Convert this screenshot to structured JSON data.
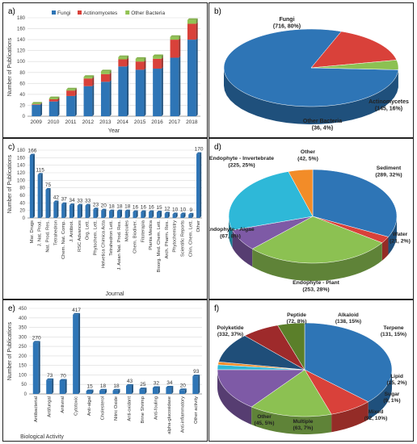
{
  "chart_data": [
    {
      "panel_label": "a)",
      "type": "bar",
      "stacked": true,
      "xlabel": "Year",
      "ylabel": "Number of Publications",
      "ylim": [
        0,
        180
      ],
      "yticks": [
        0,
        20,
        40,
        60,
        80,
        100,
        120,
        140,
        160,
        180
      ],
      "categories": [
        "2009",
        "2010",
        "2011",
        "2012",
        "2013",
        "2014",
        "2015",
        "2016",
        "2017",
        "2018"
      ],
      "series": [
        {
          "name": "Fungi",
          "color": "#2e75b6",
          "values": [
            21,
            27,
            37,
            55,
            63,
            91,
            85,
            87,
            107,
            140
          ]
        },
        {
          "name": "Actinomycetes",
          "color": "#d9413a",
          "values": [
            1,
            4,
            10,
            14,
            14,
            13,
            15,
            18,
            33,
            29
          ]
        },
        {
          "name": "Other Bacteria",
          "color": "#92c353",
          "values": [
            1,
            2,
            2,
            3,
            5,
            4,
            5,
            5,
            5,
            7
          ]
        }
      ],
      "legend": "top"
    },
    {
      "panel_label": "b)",
      "type": "pie",
      "slices": [
        {
          "name": "Fungi",
          "value": 716,
          "label": "(716, 80%)",
          "color": "#2e75b6"
        },
        {
          "name": "Actinomycetes",
          "value": 145,
          "label": "(145, 16%)",
          "color": "#d9413a"
        },
        {
          "name": "Other Bacteria",
          "value": 36,
          "label": "(36, 4%)",
          "color": "#8cc152"
        }
      ]
    },
    {
      "panel_label": "c)",
      "type": "bar",
      "xlabel": "Journal",
      "ylabel": "Number of Publications",
      "ylim": [
        0,
        180
      ],
      "yticks": [
        0,
        20,
        40,
        60,
        80,
        100,
        120,
        140,
        160,
        180
      ],
      "color": "#2e75b6",
      "categories": [
        "Mar. Drugs",
        "J. Nat. Prod.",
        "Nat. Prod. Res.",
        "Tetrahedron",
        "Chem. Nat. Comp.",
        "J. Antibiot.",
        "RSC Advances",
        "Org. Lett.",
        "Phytochem. Lett.",
        "Helvetica Chimica Acta",
        "Tetrahedron Lett.",
        "J. Asian Nat. Prod. Res.",
        "Molecules",
        "Chem. Biodiver.",
        "Fitoterapia",
        "Planta Medica",
        "Bioorg. Med. Chem. Lett.",
        "Arch. Pharm. Res.",
        "Phytochemistry",
        "Scientific Reports",
        "Chin. Chem. Lett.",
        "Other"
      ],
      "values": [
        166,
        115,
        75,
        42,
        37,
        34,
        33,
        33,
        23,
        20,
        18,
        18,
        18,
        16,
        16,
        16,
        15,
        12,
        10,
        10,
        9,
        170
      ]
    },
    {
      "panel_label": "d)",
      "type": "pie",
      "slices": [
        {
          "name": "Sediment",
          "value": 289,
          "label": "(289, 32%)",
          "color": "#2e75b6"
        },
        {
          "name": "Water",
          "value": 21,
          "label": "(21, 2%)",
          "color": "#d9413a"
        },
        {
          "name": "Endophyte - Plant",
          "value": 253,
          "label": "(253, 28%)",
          "color": "#8cc152"
        },
        {
          "name": "Endophyte - Algae",
          "value": 67,
          "label": "(67, 8%)",
          "color": "#7e5aa6"
        },
        {
          "name": "Endophyte - Invertebrate",
          "value": 225,
          "label": "(225, 25%)",
          "color": "#2eb8d8"
        },
        {
          "name": "Other",
          "value": 42,
          "label": "(42, 5%)",
          "color": "#f28c28"
        }
      ]
    },
    {
      "panel_label": "e)",
      "type": "bar",
      "xlabel": "Biological Activity",
      "ylabel": "Number of Publications",
      "ylim": [
        0,
        450
      ],
      "yticks": [
        0,
        50,
        100,
        150,
        200,
        250,
        300,
        350,
        400,
        450
      ],
      "color": "#2e75b6",
      "categories": [
        "Antibacterial",
        "Antifungal",
        "Antiviral",
        "Cytotoxic",
        "Anti-algal",
        "Cholesterol",
        "Nitric Oxide",
        "Anti-oxidant",
        "Brine Shrimp",
        "Anti-fouling",
        "alpha-glucosidase",
        "Anti-inflammatory",
        "Other activity"
      ],
      "values": [
        270,
        73,
        70,
        417,
        15,
        18,
        18,
        43,
        25,
        32,
        34,
        20,
        93
      ]
    },
    {
      "panel_label": "f)",
      "type": "pie",
      "slices": [
        {
          "name": "Polyketide",
          "value": 332,
          "label": "(332, 37%)",
          "color": "#2e75b6"
        },
        {
          "name": "Peptide",
          "value": 72,
          "label": "(72, 8%)",
          "color": "#d9413a"
        },
        {
          "name": "Alkaloid",
          "value": 138,
          "label": "(138, 15%)",
          "color": "#8cc152"
        },
        {
          "name": "Terpene",
          "value": 131,
          "label": "(131, 15%)",
          "color": "#7e5aa6"
        },
        {
          "name": "Lipid",
          "value": 15,
          "label": "(15, 2%)",
          "color": "#2eb8d8"
        },
        {
          "name": "Sugar",
          "value": 9,
          "label": "(9, 1%)",
          "color": "#f28c28"
        },
        {
          "name": "Mixed",
          "value": 92,
          "label": "(92, 10%)",
          "color": "#1f4e79"
        },
        {
          "name": "Multiple",
          "value": 63,
          "label": "(63, 7%)",
          "color": "#9e2a2b"
        },
        {
          "name": "Other",
          "value": 45,
          "label": "(45, 5%)",
          "color": "#5b7f2a"
        }
      ]
    }
  ]
}
